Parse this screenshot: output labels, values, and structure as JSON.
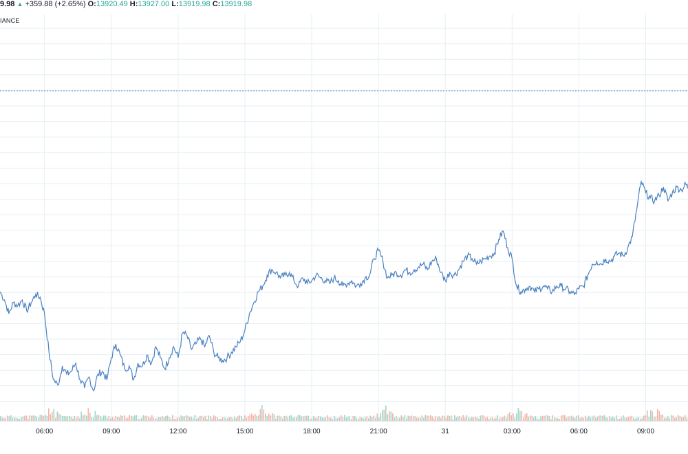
{
  "header": {
    "last_fragment": "9.98",
    "change": "+359.88 (+2.65%)",
    "open_label": "O:",
    "open": "13920.49",
    "high_label": "H:",
    "high": "13927.00",
    "low_label": "L:",
    "low": "13919.98",
    "close_label": "C:",
    "close": "13919.98"
  },
  "source_fragment": "IANCE",
  "colors": {
    "line": "#4a80c1",
    "grid": "#e6eff4",
    "dotted_line": "#5b8fc7",
    "volume_up": "#9fd8c8",
    "volume_down": "#f4b5a8",
    "up_text": "#26a69a"
  },
  "chart_data": {
    "type": "line",
    "x_tick_labels": [
      "06:00",
      "09:00",
      "12:00",
      "15:00",
      "18:00",
      "21:00",
      "31",
      "03:00",
      "06:00",
      "09:00"
    ],
    "x_hours": [
      0,
      3,
      6,
      9,
      12,
      15,
      18,
      21,
      24,
      27
    ],
    "x_range_hours": [
      -2.0,
      28.9
    ],
    "y_range": [
      13470,
      13985
    ],
    "reference_value": 13920,
    "series": [
      {
        "points": [
          [
            -2.0,
            13680
          ],
          [
            -1.8,
            13665
          ],
          [
            -1.6,
            13640
          ],
          [
            -1.4,
            13660
          ],
          [
            -1.2,
            13655
          ],
          [
            -1.0,
            13665
          ],
          [
            -0.8,
            13645
          ],
          [
            -0.6,
            13660
          ],
          [
            -0.4,
            13675
          ],
          [
            -0.2,
            13670
          ],
          [
            0.0,
            13640
          ],
          [
            0.2,
            13570
          ],
          [
            0.4,
            13520
          ],
          [
            0.6,
            13510
          ],
          [
            0.8,
            13545
          ],
          [
            1.0,
            13530
          ],
          [
            1.2,
            13535
          ],
          [
            1.4,
            13550
          ],
          [
            1.6,
            13520
          ],
          [
            1.8,
            13505
          ],
          [
            2.0,
            13525
          ],
          [
            2.2,
            13500
          ],
          [
            2.4,
            13530
          ],
          [
            2.6,
            13535
          ],
          [
            2.8,
            13520
          ],
          [
            3.0,
            13560
          ],
          [
            3.2,
            13585
          ],
          [
            3.4,
            13565
          ],
          [
            3.6,
            13540
          ],
          [
            3.8,
            13545
          ],
          [
            4.0,
            13520
          ],
          [
            4.2,
            13550
          ],
          [
            4.4,
            13545
          ],
          [
            4.6,
            13565
          ],
          [
            4.8,
            13550
          ],
          [
            5.0,
            13580
          ],
          [
            5.2,
            13560
          ],
          [
            5.4,
            13540
          ],
          [
            5.6,
            13560
          ],
          [
            5.8,
            13580
          ],
          [
            6.0,
            13560
          ],
          [
            6.2,
            13605
          ],
          [
            6.4,
            13600
          ],
          [
            6.6,
            13575
          ],
          [
            6.8,
            13585
          ],
          [
            7.0,
            13595
          ],
          [
            7.2,
            13580
          ],
          [
            7.4,
            13600
          ],
          [
            7.6,
            13570
          ],
          [
            7.8,
            13560
          ],
          [
            8.0,
            13555
          ],
          [
            8.2,
            13560
          ],
          [
            8.4,
            13570
          ],
          [
            8.6,
            13580
          ],
          [
            8.8,
            13590
          ],
          [
            9.0,
            13610
          ],
          [
            9.2,
            13640
          ],
          [
            9.4,
            13660
          ],
          [
            9.6,
            13680
          ],
          [
            9.8,
            13690
          ],
          [
            10.0,
            13710
          ],
          [
            10.2,
            13720
          ],
          [
            10.4,
            13715
          ],
          [
            10.6,
            13705
          ],
          [
            10.8,
            13710
          ],
          [
            11.0,
            13715
          ],
          [
            11.2,
            13700
          ],
          [
            11.4,
            13690
          ],
          [
            11.6,
            13705
          ],
          [
            11.8,
            13695
          ],
          [
            12.0,
            13700
          ],
          [
            12.2,
            13710
          ],
          [
            12.4,
            13705
          ],
          [
            12.6,
            13700
          ],
          [
            12.8,
            13695
          ],
          [
            13.0,
            13705
          ],
          [
            13.2,
            13700
          ],
          [
            13.4,
            13690
          ],
          [
            13.6,
            13695
          ],
          [
            13.8,
            13700
          ],
          [
            14.0,
            13690
          ],
          [
            14.2,
            13695
          ],
          [
            14.4,
            13705
          ],
          [
            14.6,
            13710
          ],
          [
            14.8,
            13740
          ],
          [
            15.0,
            13755
          ],
          [
            15.2,
            13735
          ],
          [
            15.4,
            13705
          ],
          [
            15.6,
            13710
          ],
          [
            15.8,
            13715
          ],
          [
            16.0,
            13710
          ],
          [
            16.2,
            13720
          ],
          [
            16.4,
            13715
          ],
          [
            16.6,
            13720
          ],
          [
            16.8,
            13725
          ],
          [
            17.0,
            13730
          ],
          [
            17.2,
            13720
          ],
          [
            17.4,
            13735
          ],
          [
            17.6,
            13740
          ],
          [
            17.8,
            13715
          ],
          [
            18.0,
            13700
          ],
          [
            18.2,
            13715
          ],
          [
            18.4,
            13710
          ],
          [
            18.6,
            13720
          ],
          [
            18.8,
            13735
          ],
          [
            19.0,
            13745
          ],
          [
            19.2,
            13740
          ],
          [
            19.4,
            13730
          ],
          [
            19.6,
            13735
          ],
          [
            19.8,
            13740
          ],
          [
            20.0,
            13745
          ],
          [
            20.2,
            13750
          ],
          [
            20.4,
            13775
          ],
          [
            20.6,
            13790
          ],
          [
            20.8,
            13760
          ],
          [
            21.0,
            13740
          ],
          [
            21.2,
            13690
          ],
          [
            21.4,
            13680
          ],
          [
            21.6,
            13685
          ],
          [
            21.8,
            13690
          ],
          [
            22.0,
            13680
          ],
          [
            22.2,
            13685
          ],
          [
            22.4,
            13690
          ],
          [
            22.6,
            13685
          ],
          [
            22.8,
            13680
          ],
          [
            23.0,
            13690
          ],
          [
            23.2,
            13690
          ],
          [
            23.4,
            13685
          ],
          [
            23.6,
            13680
          ],
          [
            23.8,
            13675
          ],
          [
            24.0,
            13685
          ],
          [
            24.2,
            13690
          ],
          [
            24.4,
            13710
          ],
          [
            24.6,
            13730
          ],
          [
            24.8,
            13735
          ],
          [
            25.0,
            13730
          ],
          [
            25.2,
            13740
          ],
          [
            25.4,
            13735
          ],
          [
            25.6,
            13745
          ],
          [
            25.8,
            13750
          ],
          [
            26.0,
            13745
          ],
          [
            26.2,
            13760
          ],
          [
            26.4,
            13780
          ],
          [
            26.6,
            13830
          ],
          [
            26.8,
            13880
          ],
          [
            27.0,
            13860
          ],
          [
            27.2,
            13850
          ],
          [
            27.4,
            13845
          ],
          [
            27.6,
            13855
          ],
          [
            27.8,
            13870
          ],
          [
            28.0,
            13845
          ],
          [
            28.2,
            13860
          ],
          [
            28.4,
            13870
          ],
          [
            28.6,
            13865
          ],
          [
            28.8,
            13875
          ],
          [
            28.9,
            13870
          ]
        ]
      }
    ],
    "grid": true,
    "legend": "none"
  }
}
